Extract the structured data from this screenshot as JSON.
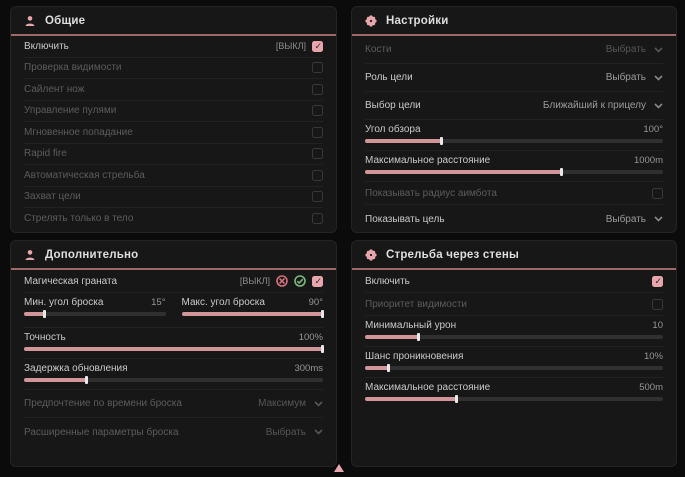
{
  "colors": {
    "page_bg": "#0b0b0b",
    "panel_bg": "#171717",
    "accent_pink": "#e8a7ad",
    "header_divider": "#9e686c",
    "slider_fill": "#d29599",
    "success_green": "#79b97e",
    "danger_red": "#d4707c"
  },
  "panels": {
    "general": {
      "title": "Общие",
      "icon": "person-icon",
      "rows": [
        {
          "label": "Включить",
          "status": "[ВЫКЛ]",
          "checked": true
        },
        {
          "label": "Проверка видимости",
          "checked": false
        },
        {
          "label": "Сайлент нож",
          "checked": false
        },
        {
          "label": "Управление пулями",
          "checked": false
        },
        {
          "label": "Мгновенное попадание",
          "checked": false
        },
        {
          "label": "Rapid fire",
          "checked": false
        },
        {
          "label": "Автоматическая стрельба",
          "checked": false
        },
        {
          "label": "Захват цели",
          "checked": false
        },
        {
          "label": "Стрелять только в тело",
          "checked": false
        }
      ]
    },
    "settings": {
      "title": "Настройки",
      "icon": "gear-icon",
      "rows": [
        {
          "label": "Кости",
          "value": "Выбрать"
        },
        {
          "label": "Роль цели",
          "value": "Выбрать"
        },
        {
          "label": "Выбор цели",
          "value": "Ближайший к прицелу"
        },
        {
          "label": "Угол обзора",
          "value": "100°",
          "percent": 26
        },
        {
          "label": "Максимальное расстояние",
          "value": "1000m",
          "percent": 66
        },
        {
          "label": "Показывать радиус аимбота",
          "checked": false
        },
        {
          "label": "Показывать цель",
          "value": "Выбрать"
        }
      ]
    },
    "additional": {
      "title": "Дополнительно",
      "icon": "person-icon",
      "rows": [
        {
          "label": "Магическая граната",
          "status": "[ВЫКЛ]",
          "checked": true
        },
        {
          "label": "Мин. угол броска",
          "value": "15°",
          "percent": 15
        },
        {
          "label": "Макс. угол броска",
          "value": "90°",
          "percent": 100
        },
        {
          "label": "Точность",
          "value": "100%",
          "percent": 100
        },
        {
          "label": "Задержка обновления",
          "value": "300ms",
          "percent": 21
        },
        {
          "label": "Предпочтение по времени броска",
          "value": "Максимум"
        },
        {
          "label": "Расширенные параметры броска",
          "value": "Выбрать"
        }
      ]
    },
    "wallbang": {
      "title": "Стрельба через стены",
      "icon": "gear-icon",
      "rows": [
        {
          "label": "Включить",
          "checked": true
        },
        {
          "label": "Приоритет видимости",
          "checked": false
        },
        {
          "label": "Минимальный урон",
          "value": "10",
          "percent": 18
        },
        {
          "label": "Шанс проникновения",
          "value": "10%",
          "percent": 8
        },
        {
          "label": "Максимальное расстояние",
          "value": "500m",
          "percent": 31
        }
      ]
    }
  }
}
